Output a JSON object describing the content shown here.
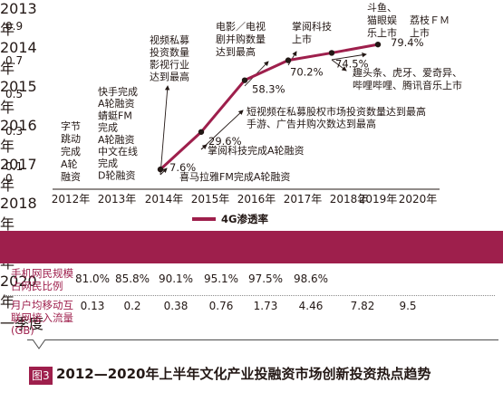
{
  "chart_data": {
    "type": "line",
    "categories": [
      "2012年",
      "2013年",
      "2014年",
      "2015年",
      "2016年",
      "2017年",
      "2018年",
      "2019年",
      "2020年"
    ],
    "series": [
      {
        "name": "4G渗透率",
        "x": [
          "2014年",
          "2015年",
          "2016年",
          "2017年",
          "2018年",
          "2019年"
        ],
        "values": [
          0.076,
          0.296,
          0.583,
          0.702,
          0.745,
          0.794
        ],
        "labels": [
          "7.6%",
          "29.6%",
          "58.3%",
          "70.2%",
          "74.5%",
          "79.4%"
        ]
      }
    ],
    "yticks": [
      "0",
      "0.1",
      "0.3",
      "0.5",
      "0.7",
      "0.9"
    ],
    "ytick_values": [
      0,
      0.1,
      0.3,
      0.5,
      0.7,
      0.9
    ],
    "ylim": [
      0,
      0.9
    ],
    "grid": false,
    "legend": "bottom",
    "color": "#9e1f4c",
    "annotations": [
      {
        "id": "a2012",
        "x": "2012年",
        "lines": [
          "字节",
          "跳动",
          "完成",
          "A轮",
          "融资"
        ]
      },
      {
        "id": "a2013",
        "x": "2013年",
        "lines": [
          "快手完成",
          "A轮融资",
          "蜻蜓FM",
          "完成",
          "A轮融资",
          "中文在线",
          "完成",
          "D轮融资"
        ]
      },
      {
        "id": "a2014",
        "x": "2014年",
        "lines": [
          "视频私募",
          "投资数量",
          "影视行业",
          "达到最高"
        ]
      },
      {
        "id": "a2015a",
        "x": "2015年",
        "lines": [
          "短视频在私募股权市场投资数量达到最高",
          "手游、广告并购次数达到最高"
        ]
      },
      {
        "id": "a2015b",
        "x": "2015年",
        "lines": [
          "掌阅科技完成A轮融资"
        ]
      },
      {
        "id": "a2014b",
        "x": "2014年",
        "lines": [
          "喜马拉雅FM完成A轮融资"
        ]
      },
      {
        "id": "a2016",
        "x": "2016年",
        "lines": [
          "电影／电视",
          "剧并购数量",
          "达到最高"
        ]
      },
      {
        "id": "a2017",
        "x": "2017年",
        "lines": [
          "掌阅科技",
          "上市"
        ]
      },
      {
        "id": "a2018",
        "x": "2018年",
        "lines": [
          "斗鱼、",
          "猫眼娱",
          "乐上市"
        ]
      },
      {
        "id": "a2019a",
        "x": "2019年",
        "lines": [
          "荔枝ＦＭ",
          "上市"
        ]
      },
      {
        "id": "a2019b",
        "x": "2019年",
        "lines": [
          "趣头条、虎牙、爱奇异、",
          "哔哩哔哩、腾讯音乐上市"
        ]
      }
    ]
  },
  "legend_label": "4G渗透率",
  "table": {
    "headers": [
      "2013年",
      "2014年",
      "2015年",
      "2016年",
      "2017年",
      "2018年",
      "2019年",
      "2020年一季度"
    ],
    "rows": [
      {
        "label": "手机网民规模占网民比例",
        "values": [
          "81.0%",
          "85.8%",
          "90.1%",
          "95.1%",
          "97.5%",
          "98.6%",
          "",
          ""
        ]
      },
      {
        "label": "月户均移动互联网接入流量(GB)",
        "values": [
          "0.13",
          "0.2",
          "0.38",
          "0.76",
          "1.73",
          "4.46",
          "7.82",
          "9.5"
        ]
      }
    ]
  },
  "caption": {
    "badge": "图3",
    "text": "2012—2020年上半年文化产业投融资市场创新投资热点趋势"
  }
}
